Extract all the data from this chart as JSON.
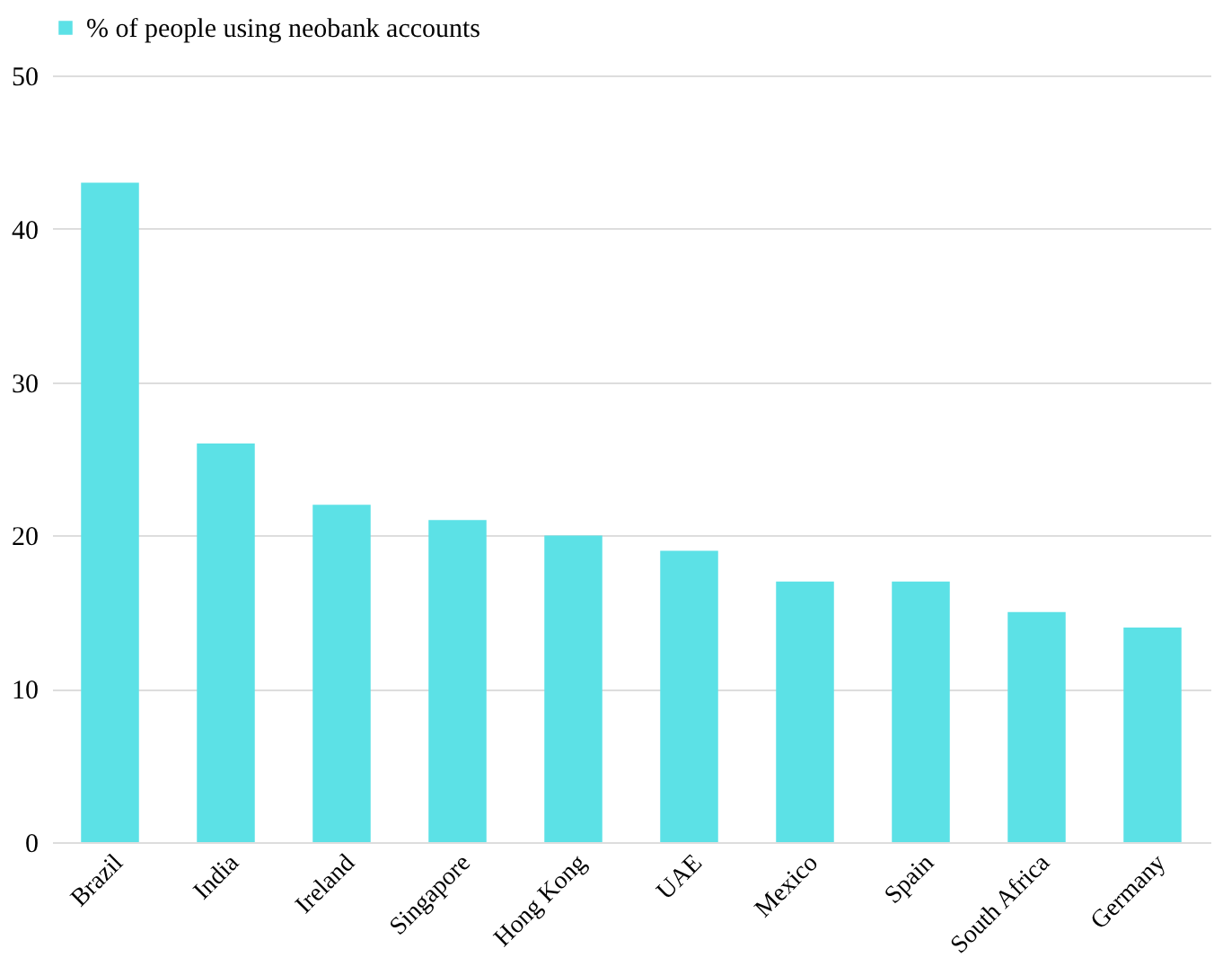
{
  "chart_data": {
    "type": "bar",
    "categories": [
      "Brazil",
      "India",
      "Ireland",
      "Singapore",
      "Hong Kong",
      "UAE",
      "Mexico",
      "Spain",
      "South Africa",
      "Germany"
    ],
    "series": [
      {
        "name": "% of people using neobank accounts",
        "color": "#5ce1e6",
        "values": [
          43,
          26,
          22,
          21,
          20,
          19,
          17,
          17,
          15,
          14
        ]
      }
    ],
    "ylim": [
      0,
      50
    ],
    "yticks": [
      0,
      10,
      20,
      30,
      40,
      50
    ],
    "grid": "y",
    "legend": "top"
  }
}
